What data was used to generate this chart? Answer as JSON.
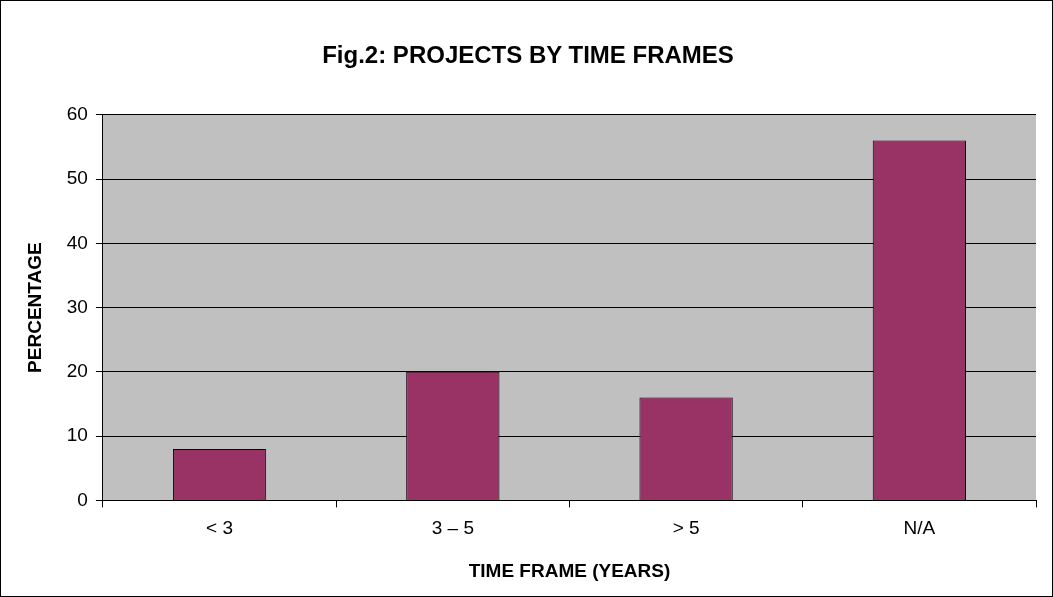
{
  "chart_data": {
    "type": "bar",
    "title": "Fig.2: PROJECTS BY TIME FRAMES",
    "xlabel": "TIME FRAME (YEARS)",
    "ylabel": "PERCENTAGE",
    "categories": [
      "< 3",
      "3 – 5",
      "> 5",
      "N/A"
    ],
    "values": [
      8,
      20,
      16,
      56
    ],
    "color": "#993366",
    "ylim": [
      0,
      60
    ],
    "yticks": [
      0,
      10,
      20,
      30,
      40,
      50,
      60
    ],
    "grid": "y",
    "legend": false
  }
}
